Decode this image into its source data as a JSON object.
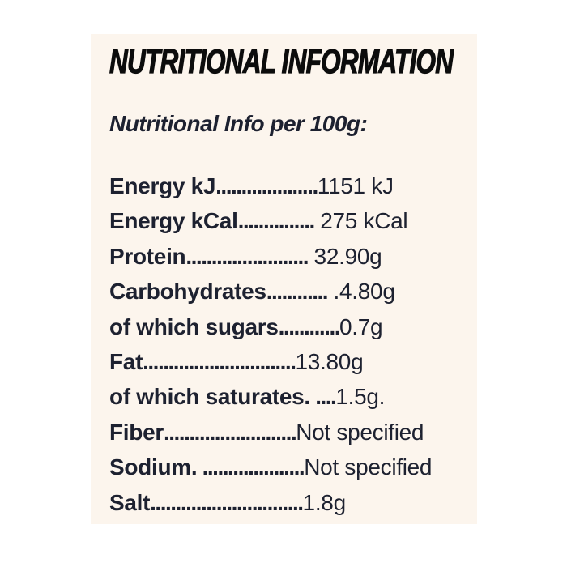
{
  "colors": {
    "page_background": "#ffffff",
    "panel_background": "#fcf5ed",
    "title_color": "#0c0c0c",
    "text_color": "#1d2130"
  },
  "panel": {
    "title": "NUTRITIONAL INFORMATION",
    "subtitle": "Nutritional Info per 100g:",
    "rows": [
      {
        "label": "Energy kJ",
        "dots": "....................",
        "value": "1151 kJ"
      },
      {
        "label": "Energy kCal",
        "dots": "...............",
        "value": " 275 kCal"
      },
      {
        "label": "Protein",
        "dots": "........................",
        "value": " 32.90g"
      },
      {
        "label": "Carbohydrates",
        "dots": "............",
        "value": " .4.80g"
      },
      {
        "label": "of which sugars",
        "dots": "............",
        "value": "0.7g"
      },
      {
        "label": "Fat",
        "dots": "..............................",
        "value": "13.80g"
      },
      {
        "label": "of which saturates.",
        "dots": " ....",
        "value": "1.5g."
      },
      {
        "label": "Fiber",
        "dots": "..........................",
        "value": "Not specified"
      },
      {
        "label": "Sodium.",
        "dots": " ....................",
        "value": "Not specified"
      },
      {
        "label": "Salt",
        "dots": "..............................",
        "value": "1.8g"
      }
    ]
  }
}
